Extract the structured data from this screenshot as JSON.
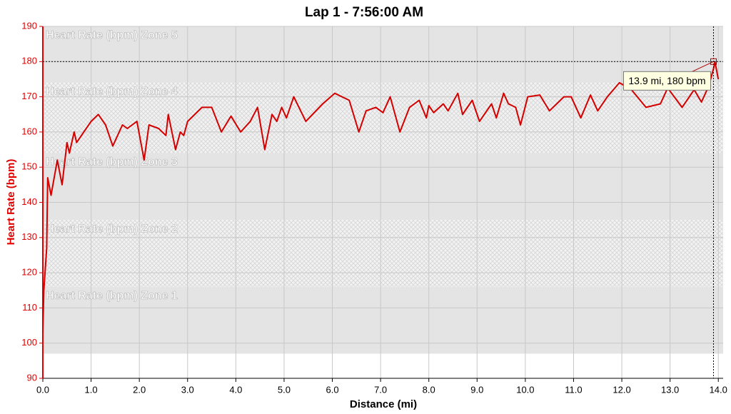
{
  "chart_data": {
    "type": "line",
    "title": "Lap 1 - 7:56:00 AM",
    "x_label": "Distance (mi)",
    "y_label": "Heart Rate (bpm)",
    "xlim": [
      0,
      14.1
    ],
    "ylim": [
      90,
      190
    ],
    "xticks": [
      {
        "value": 0,
        "label": "0.0"
      },
      {
        "value": 1,
        "label": "1.0"
      },
      {
        "value": 2,
        "label": "2.0"
      },
      {
        "value": 3,
        "label": "3.0"
      },
      {
        "value": 4,
        "label": "4.0"
      },
      {
        "value": 5,
        "label": "5.0"
      },
      {
        "value": 6,
        "label": "6.0"
      },
      {
        "value": 7,
        "label": "7.0"
      },
      {
        "value": 8,
        "label": "8.0"
      },
      {
        "value": 9,
        "label": "9.0"
      },
      {
        "value": 10,
        "label": "10.0"
      },
      {
        "value": 11,
        "label": "11.0"
      },
      {
        "value": 12,
        "label": "12.0"
      },
      {
        "value": 13,
        "label": "13.0"
      },
      {
        "value": 14,
        "label": "14.0"
      }
    ],
    "yticks": [
      90,
      100,
      110,
      120,
      130,
      140,
      150,
      160,
      170,
      180,
      190
    ],
    "grid": true,
    "y_axis_color": "#e00000",
    "zones": [
      {
        "label": "Heart Rate (bpm) Zone 5",
        "min": 174,
        "max": 190,
        "pattern": "solid"
      },
      {
        "label": "Heart Rate (bpm) Zone 4",
        "min": 154,
        "max": 174,
        "pattern": "hatched"
      },
      {
        "label": "Heart Rate (bpm) Zone 3",
        "min": 135,
        "max": 154,
        "pattern": "solid"
      },
      {
        "label": "Heart Rate (bpm) Zone 2",
        "min": 116,
        "max": 135,
        "pattern": "hatched"
      },
      {
        "label": "Heart Rate (bpm) Zone 1",
        "min": 97,
        "max": 116,
        "pattern": "solid"
      }
    ],
    "x": [
      0,
      0.02,
      0.08,
      0.1,
      0.17,
      0.3,
      0.4,
      0.5,
      0.55,
      0.65,
      0.7,
      1.0,
      1.15,
      1.3,
      1.45,
      1.65,
      1.75,
      1.95,
      2.1,
      2.2,
      2.4,
      2.55,
      2.6,
      2.75,
      2.85,
      2.92,
      3.0,
      3.3,
      3.5,
      3.7,
      3.9,
      4.1,
      4.3,
      4.45,
      4.6,
      4.75,
      4.85,
      4.95,
      5.05,
      5.2,
      5.45,
      5.8,
      6.05,
      6.35,
      6.55,
      6.7,
      6.9,
      7.05,
      7.2,
      7.4,
      7.6,
      7.8,
      7.95,
      8.0,
      8.1,
      8.3,
      8.4,
      8.6,
      8.7,
      8.9,
      9.05,
      9.3,
      9.4,
      9.55,
      9.65,
      9.8,
      9.9,
      10.05,
      10.3,
      10.5,
      10.8,
      10.95,
      11.15,
      11.35,
      11.5,
      11.7,
      11.95,
      12.2,
      12.5,
      12.8,
      12.95,
      13.25,
      13.5,
      13.65,
      13.8,
      13.9,
      13.93,
      14.0
    ],
    "series": [
      {
        "name": "Heart Rate (bpm)",
        "color": "#d40000",
        "values": [
          103,
          115,
          127,
          147,
          142,
          152,
          145,
          157,
          154,
          160,
          157,
          163,
          165,
          162,
          156,
          162,
          161,
          163,
          152,
          162,
          161,
          159,
          165,
          155,
          160,
          159,
          163,
          167,
          167,
          160,
          164.5,
          160,
          163,
          167,
          155,
          165,
          163,
          167,
          164,
          170,
          163,
          168,
          171,
          169,
          160,
          166,
          167,
          165.5,
          170,
          160,
          167,
          169,
          164,
          167.5,
          165.5,
          168,
          166,
          171,
          165,
          169,
          163,
          168,
          164,
          171,
          168,
          167,
          162,
          170,
          170.5,
          166,
          170,
          170,
          164,
          170.5,
          166,
          170,
          174,
          172,
          167,
          168,
          172.5,
          167,
          172,
          168.5,
          173,
          178,
          180,
          175
        ]
      }
    ],
    "crosshair": {
      "x": 13.9,
      "y": 180,
      "label": "13.9 mi, 180 bpm"
    }
  }
}
